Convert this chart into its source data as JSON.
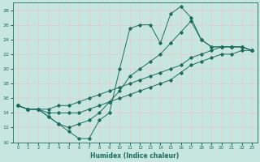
{
  "title": "",
  "xlabel": "Humidex (Indice chaleur)",
  "background_color": "#c8e6e0",
  "grid_color": "#e8c8c8",
  "line_color": "#1a6e60",
  "xlim": [
    -0.5,
    23.5
  ],
  "ylim": [
    10,
    29
  ],
  "xticks": [
    0,
    1,
    2,
    3,
    4,
    5,
    6,
    7,
    8,
    9,
    10,
    11,
    12,
    13,
    14,
    15,
    16,
    17,
    18,
    19,
    20,
    21,
    22,
    23
  ],
  "yticks": [
    10,
    12,
    14,
    16,
    18,
    20,
    22,
    24,
    26,
    28
  ],
  "lines": [
    {
      "x": [
        0,
        1,
        2,
        3,
        4,
        5,
        6,
        7,
        8,
        9,
        10,
        11,
        12,
        13,
        14,
        15,
        16,
        17,
        18,
        19,
        20,
        21,
        22,
        23
      ],
      "y": [
        15,
        14.5,
        14.5,
        13.5,
        12.5,
        11.5,
        10.5,
        10.5,
        13,
        14,
        20,
        25.5,
        26,
        26,
        23.5,
        27.5,
        28.5,
        27,
        24,
        23,
        23,
        23,
        23,
        22.5
      ]
    },
    {
      "x": [
        0,
        1,
        2,
        3,
        4,
        5,
        6,
        7,
        8,
        9,
        10,
        11,
        12,
        13,
        14,
        15,
        16,
        17,
        18,
        19,
        20,
        21,
        22,
        23
      ],
      "y": [
        15,
        14.5,
        14.5,
        14.5,
        15,
        15,
        15.5,
        16,
        16.5,
        17,
        17.5,
        18,
        18.5,
        19,
        19.5,
        20,
        20.5,
        21.5,
        22,
        22.5,
        23,
        23,
        23,
        22.5
      ]
    },
    {
      "x": [
        0,
        1,
        2,
        3,
        4,
        5,
        6,
        7,
        8,
        9,
        10,
        11,
        12,
        13,
        14,
        15,
        16,
        17,
        18,
        19,
        20,
        21,
        22,
        23
      ],
      "y": [
        15,
        14.5,
        14.5,
        14,
        14,
        14,
        14,
        14.5,
        15,
        15.5,
        16,
        16.5,
        17,
        17.5,
        18,
        18.5,
        19.5,
        20.5,
        21,
        21.5,
        22,
        22,
        22.5,
        22.5
      ]
    },
    {
      "x": [
        0,
        1,
        2,
        3,
        4,
        5,
        6,
        7,
        8,
        9,
        10,
        11,
        12,
        13,
        14,
        15,
        16,
        17,
        18,
        19,
        20,
        21,
        22,
        23
      ],
      "y": [
        15,
        14.5,
        14.5,
        13.5,
        12.5,
        12,
        12.5,
        13,
        14,
        15.5,
        17,
        19,
        20,
        21,
        22,
        23.5,
        25,
        26.5,
        24,
        23,
        23,
        23,
        23,
        22.5
      ]
    }
  ]
}
